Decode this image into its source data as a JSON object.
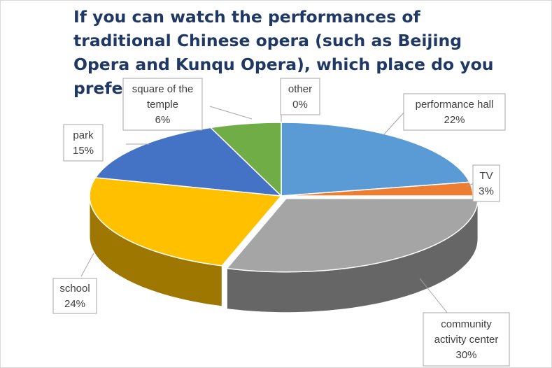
{
  "chart_data": {
    "type": "pie",
    "style": "3d-exploded",
    "title": "If you can watch the performances of traditional Chinese opera (such as Beijing Opera and Kunqu Opera), which place do you prefer ?",
    "slices": [
      {
        "label": [
          "performance hall"
        ],
        "value_text": "22%",
        "value": 22,
        "color": "#5b9bd5"
      },
      {
        "label": [
          "TV"
        ],
        "value_text": "3%",
        "value": 3,
        "color": "#ed7d31"
      },
      {
        "label": [
          "community",
          "activity center"
        ],
        "value_text": "30%",
        "value": 30,
        "color": "#a5a5a5"
      },
      {
        "label": [
          "school"
        ],
        "value_text": "24%",
        "value": 24,
        "color": "#ffc000"
      },
      {
        "label": [
          "park"
        ],
        "value_text": "15%",
        "value": 15,
        "color": "#4472c4"
      },
      {
        "label": [
          "square of the",
          "temple"
        ],
        "value_text": "6%",
        "value": 6,
        "color": "#70ad47"
      },
      {
        "label": [
          "other"
        ],
        "value_text": "0%",
        "value": 0,
        "color": "#264478"
      }
    ]
  }
}
